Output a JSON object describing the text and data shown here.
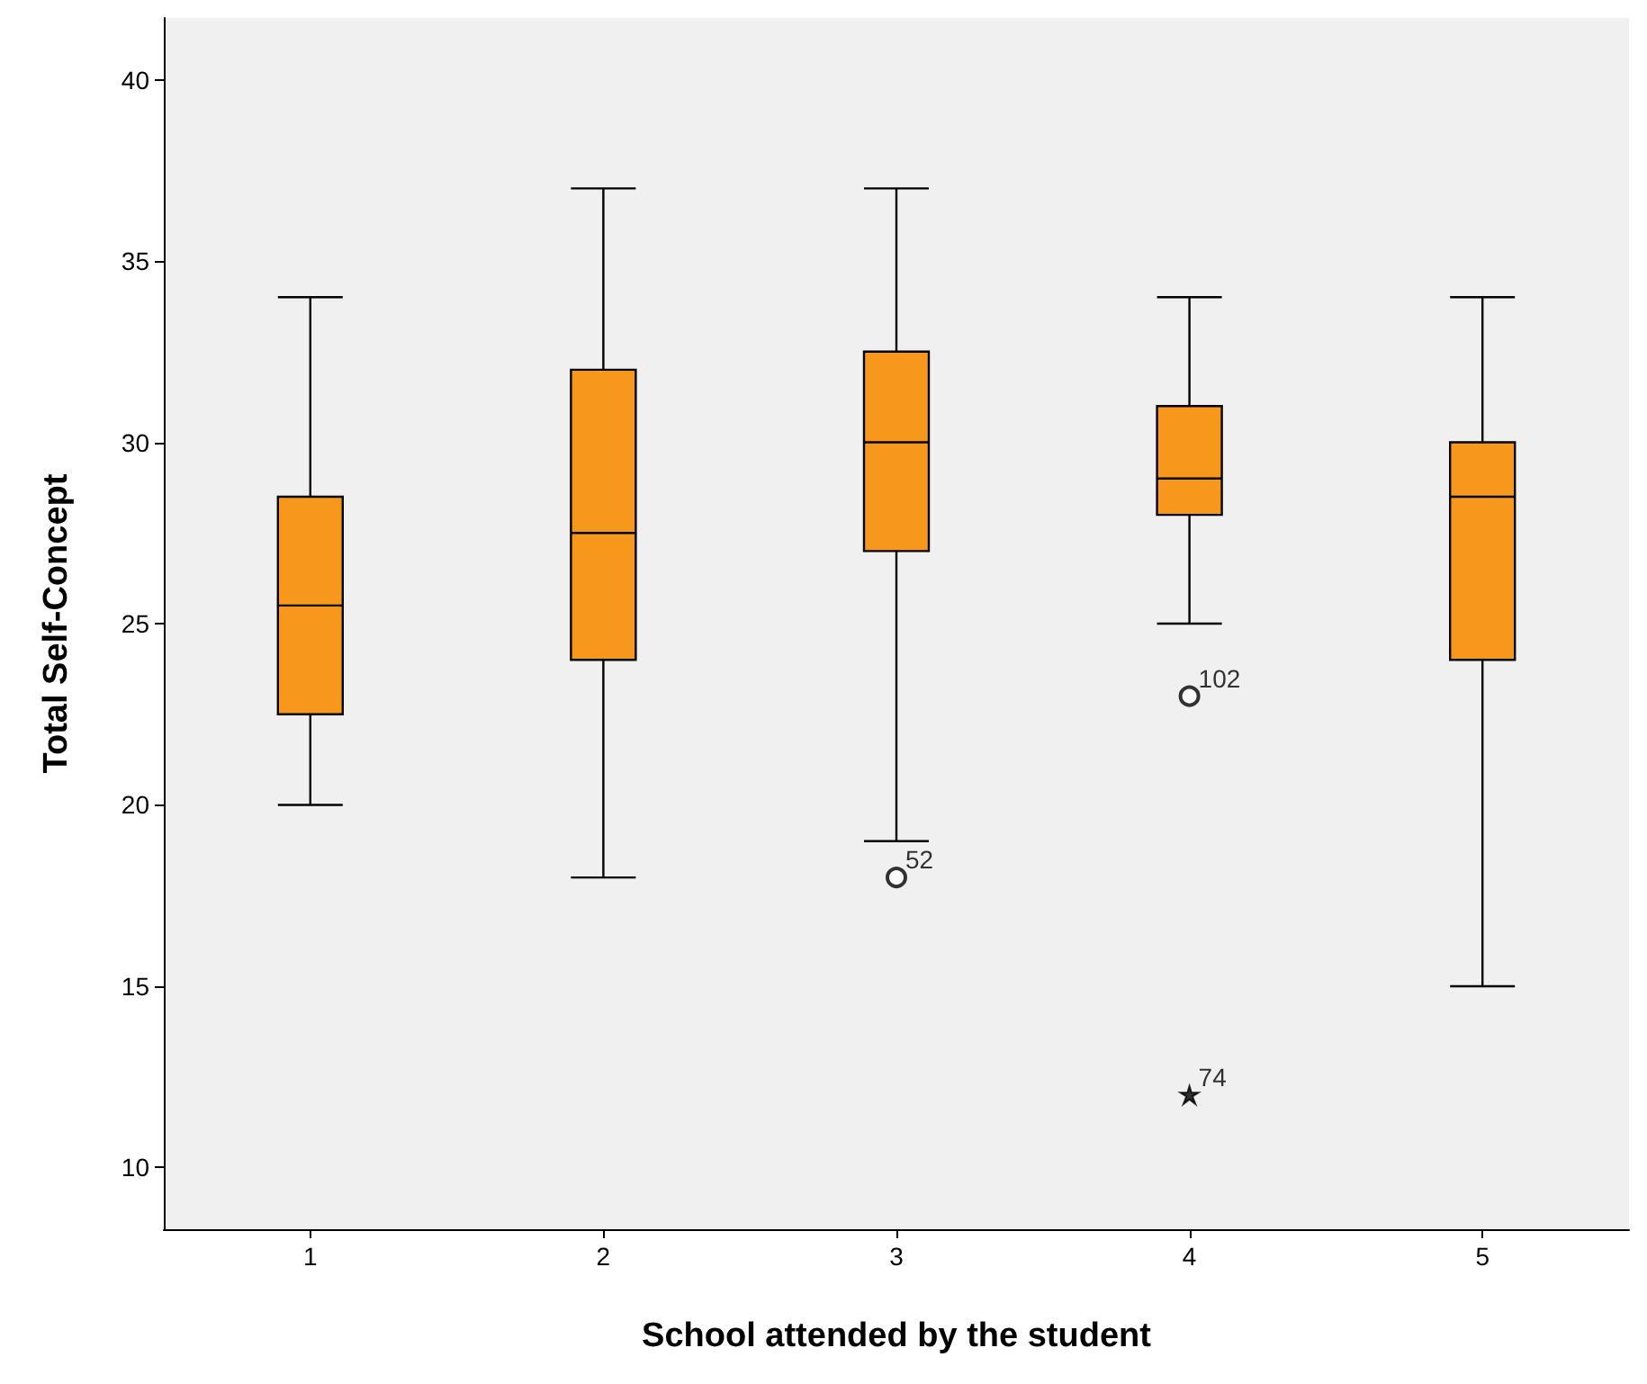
{
  "chart_data": {
    "type": "box",
    "xlabel": "School attended by the student",
    "ylabel": "Total Self-Concept",
    "categories": [
      "1",
      "2",
      "3",
      "4",
      "5"
    ],
    "ylim": [
      8.3,
      41.7
    ],
    "yticks": [
      10,
      15,
      20,
      25,
      30,
      35,
      40
    ],
    "grid": false,
    "series": [
      {
        "color": "#f7981d",
        "boxes": [
          {
            "low": 20,
            "q1": 22.5,
            "median": 25.5,
            "q3": 28.5,
            "high": 34
          },
          {
            "low": 18,
            "q1": 24,
            "median": 27.5,
            "q3": 32,
            "high": 37
          },
          {
            "low": 19,
            "q1": 27,
            "median": 30,
            "q3": 32.5,
            "high": 37
          },
          {
            "low": 25,
            "q1": 28,
            "median": 29,
            "q3": 31,
            "high": 34
          },
          {
            "low": 15,
            "q1": 24,
            "median": 28.5,
            "q3": 30,
            "high": 34
          }
        ]
      },
      {
        "type": "scatter",
        "marker": "circle",
        "color": "#000000",
        "x": [
          "3",
          "4"
        ],
        "values": [
          18,
          23
        ]
      },
      {
        "type": "scatter",
        "marker": "star",
        "color": "#000000",
        "x": [
          "4"
        ],
        "values": [
          12
        ]
      }
    ],
    "annotations": [
      {
        "text": "52",
        "x": "3",
        "y": 18
      },
      {
        "text": "102",
        "x": "4",
        "y": 23
      },
      {
        "text": "74",
        "x": "4",
        "y": 12
      }
    ]
  }
}
